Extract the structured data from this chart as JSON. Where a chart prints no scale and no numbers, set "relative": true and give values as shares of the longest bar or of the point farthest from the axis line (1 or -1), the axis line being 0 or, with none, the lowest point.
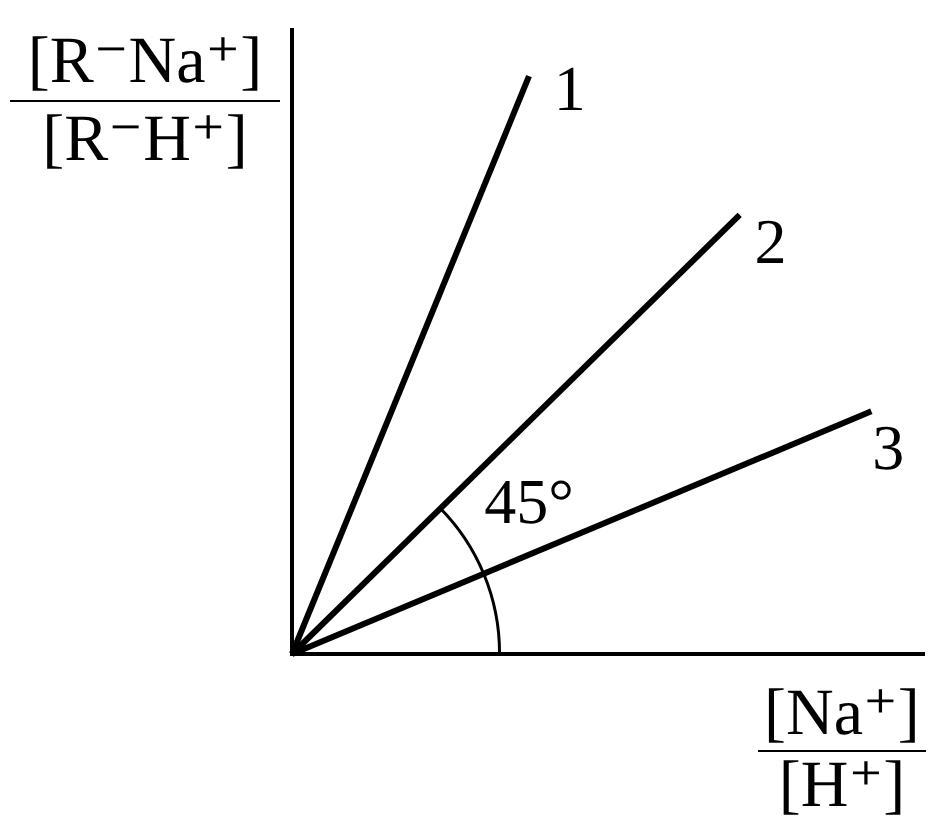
{
  "chart_data": {
    "type": "line",
    "relative": true,
    "xlabel": "[Na⁺]\n[H⁺]",
    "ylabel": "[R⁻Na⁺]\n[R⁻H⁺]",
    "categories": [
      null,
      null,
      null,
      null,
      null,
      null,
      null,
      null,
      null,
      null,
      null,
      null,
      null,
      null,
      null,
      null,
      null,
      null,
      null,
      null,
      null,
      null,
      null,
      null,
      null
    ],
    "series": [
      {
        "name": "1",
        "color": "#000000",
        "values": [
          0,
          null,
          null,
          null,
          null,
          null,
          null,
          null,
          null,
          1,
          null,
          null,
          null,
          null,
          null,
          null,
          null,
          null,
          null,
          null,
          null,
          null,
          null,
          null,
          null
        ]
      },
      {
        "name": "2",
        "color": "#000000",
        "values": [
          0,
          null,
          null,
          null,
          null,
          null,
          null,
          null,
          null,
          null,
          null,
          null,
          null,
          null,
          null,
          null,
          null,
          0.76,
          null,
          null,
          null,
          null,
          null,
          null,
          null
        ]
      },
      {
        "name": "3",
        "color": "#000000",
        "values": [
          0,
          null,
          null,
          null,
          null,
          null,
          null,
          null,
          null,
          null,
          null,
          null,
          null,
          null,
          null,
          null,
          null,
          null,
          null,
          null,
          null,
          null,
          0.42,
          null,
          null
        ]
      }
    ],
    "annotations": [
      "45°"
    ]
  }
}
